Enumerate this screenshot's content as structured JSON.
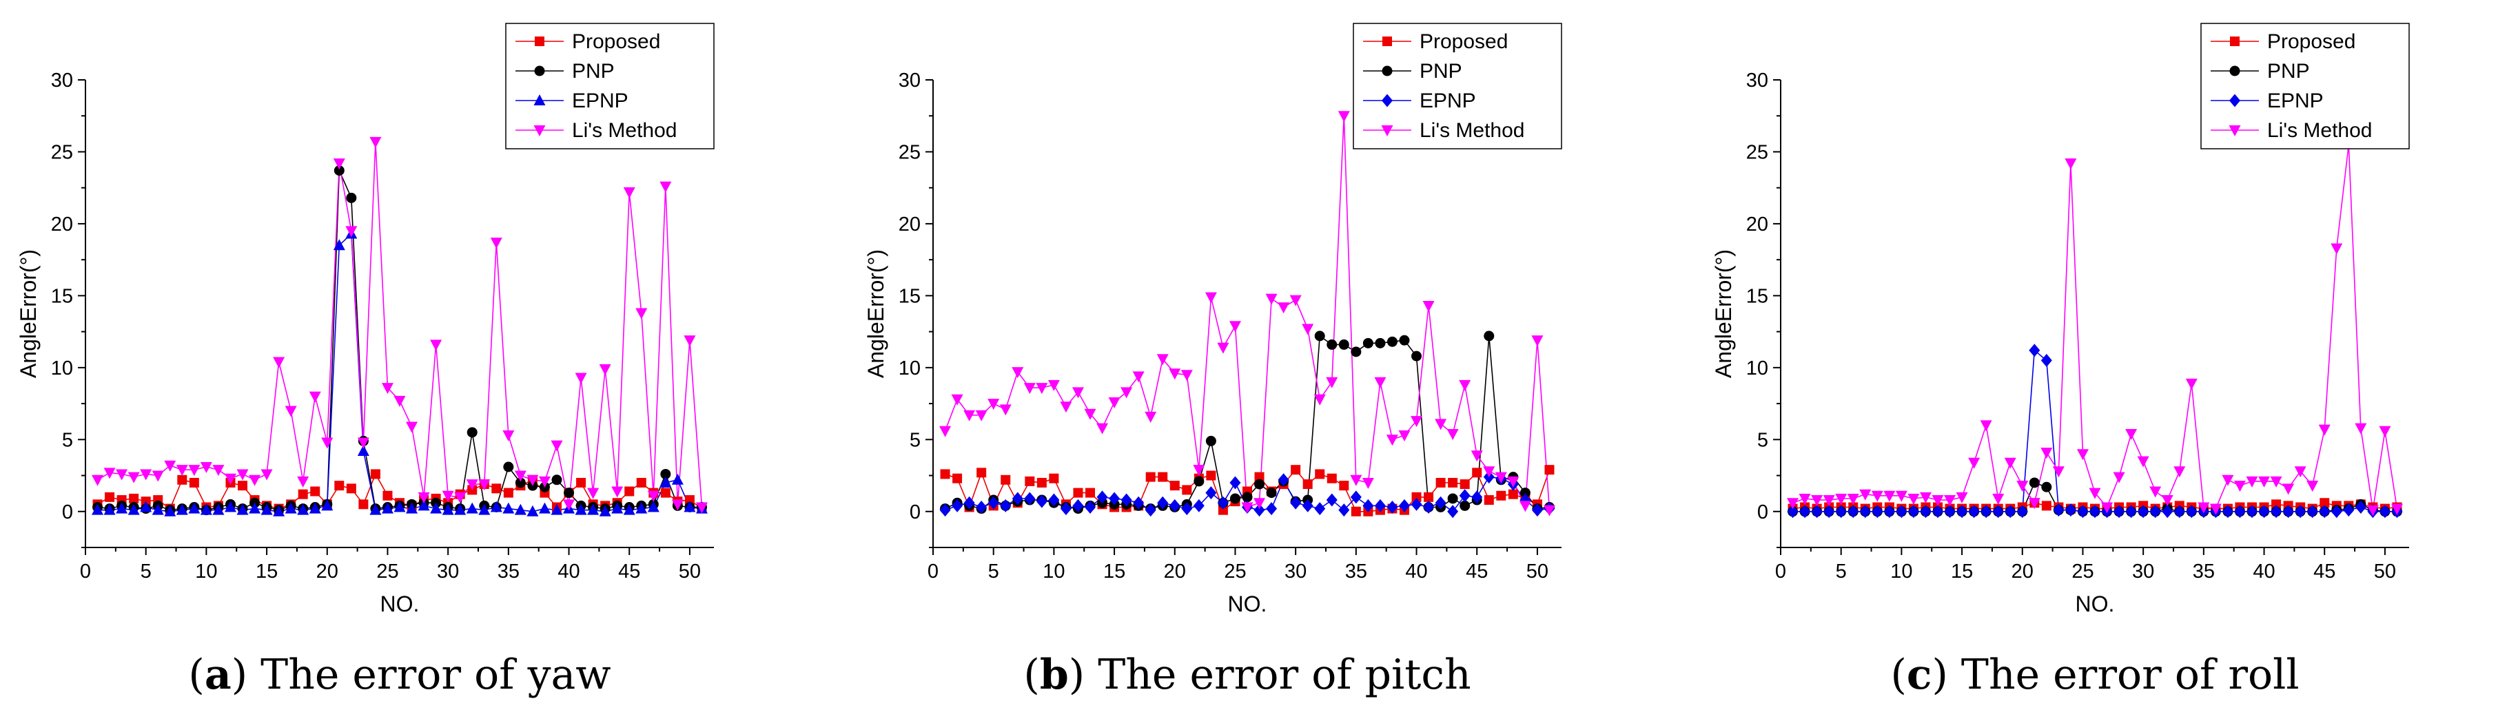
{
  "colors": {
    "proposed": "#ee0000",
    "pnp": "#000000",
    "epnp": "#0000ee",
    "li": "#ff00ff"
  },
  "chart_data": [
    {
      "type": "line",
      "id": "yaw",
      "caption_letter": "a",
      "caption_text": "The error of yaw",
      "xlabel": "NO.",
      "ylabel": "AngleError(°)",
      "xlim": [
        0,
        52
      ],
      "ylim": [
        -2.5,
        30
      ],
      "xticks": [
        0,
        5,
        10,
        15,
        20,
        25,
        30,
        35,
        40,
        45,
        50
      ],
      "yticks": [
        0,
        5,
        10,
        15,
        20,
        25,
        30
      ],
      "legend_position": "top-right",
      "series": [
        {
          "key": "proposed",
          "name": "Proposed",
          "marker": "square",
          "values": [
            0.5,
            1,
            0.8,
            0.9,
            0.7,
            0.8,
            0.2,
            2.2,
            2.0,
            0.3,
            0.4,
            2.0,
            1.8,
            0.8,
            0.4,
            0.2,
            0.5,
            1.2,
            1.4,
            0.5,
            1.8,
            1.6,
            0.5,
            2.6,
            1.1,
            0.6,
            0.4,
            0.8,
            0.9,
            0.6,
            1.2,
            1.5,
            1.9,
            1.6,
            1.3,
            1.8,
            2.2,
            1.3,
            0.3,
            1.3,
            2.0,
            0.5,
            0.4,
            0.6,
            1.4,
            2.0,
            1.3,
            1.3,
            0.7,
            0.8,
            0.2
          ]
        },
        {
          "key": "pnp",
          "name": "PNP",
          "marker": "circle",
          "values": [
            0.3,
            0.2,
            0.4,
            0.3,
            0.2,
            0.4,
            0.1,
            0.2,
            0.3,
            0.1,
            0.3,
            0.5,
            0.2,
            0.6,
            0.3,
            0.1,
            0.4,
            0.2,
            0.3,
            0.5,
            23.7,
            21.8,
            4.9,
            0.2,
            0.3,
            0.4,
            0.5,
            0.6,
            0.6,
            0.3,
            0.2,
            5.5,
            0.4,
            0.3,
            3.1,
            2.0,
            1.8,
            1.7,
            2.2,
            1.3,
            0.4,
            0.3,
            0.2,
            0.4,
            0.3,
            0.4,
            0.5,
            2.6,
            0.4,
            0.3,
            0.3
          ]
        },
        {
          "key": "epnp",
          "name": "EPNP",
          "marker": "triangle-up",
          "values": [
            0.1,
            0.1,
            0.2,
            0.1,
            0.3,
            0.1,
            0.0,
            0.1,
            0.2,
            0.1,
            0.1,
            0.3,
            0.1,
            0.2,
            0.1,
            0.0,
            0.2,
            0.1,
            0.2,
            0.4,
            18.5,
            19.3,
            4.2,
            0.1,
            0.2,
            0.3,
            0.2,
            0.4,
            0.2,
            0.1,
            0.1,
            0.2,
            0.1,
            0.3,
            0.2,
            0.1,
            0.0,
            0.2,
            0.1,
            0.2,
            0.1,
            0.1,
            0.0,
            0.2,
            0.1,
            0.2,
            0.3,
            2.0,
            2.2,
            0.3,
            0.2
          ]
        },
        {
          "key": "li",
          "name": "Li's Method",
          "marker": "triangle-down",
          "values": [
            2.2,
            2.7,
            2.6,
            2.4,
            2.6,
            2.5,
            3.2,
            2.9,
            2.9,
            3.1,
            2.9,
            2.3,
            2.6,
            2.2,
            2.6,
            10.4,
            7.0,
            2.1,
            8.0,
            4.8,
            24.2,
            19.5,
            4.8,
            25.7,
            8.6,
            7.7,
            5.9,
            1.0,
            11.6,
            1.1,
            1.0,
            1.9,
            1.9,
            18.7,
            5.3,
            2.5,
            2.2,
            2.1,
            4.6,
            0.5,
            9.3,
            1.3,
            9.9,
            1.4,
            22.2,
            13.8,
            1.1,
            22.6,
            0.5,
            11.9,
            0.3
          ]
        }
      ]
    },
    {
      "type": "line",
      "id": "pitch",
      "caption_letter": "b",
      "caption_text": "The error of pitch",
      "xlabel": "NO.",
      "ylabel": "AngleError(°)",
      "xlim": [
        0,
        52
      ],
      "ylim": [
        -2.5,
        30
      ],
      "xticks": [
        0,
        5,
        10,
        15,
        20,
        25,
        30,
        35,
        40,
        45,
        50
      ],
      "yticks": [
        0,
        5,
        10,
        15,
        20,
        25,
        30
      ],
      "legend_position": "top-right",
      "series": [
        {
          "key": "proposed",
          "name": "Proposed",
          "marker": "square",
          "values": [
            2.6,
            2.3,
            0.3,
            2.7,
            0.4,
            2.2,
            0.6,
            2.1,
            2.0,
            2.3,
            0.5,
            1.3,
            1.3,
            0.5,
            0.3,
            0.3,
            0.4,
            2.4,
            2.4,
            1.8,
            1.5,
            2.3,
            2.5,
            0.1,
            0.7,
            1.4,
            2.4,
            1.4,
            1.9,
            2.9,
            1.9,
            2.6,
            2.3,
            1.8,
            0.0,
            0.0,
            0.1,
            0.2,
            0.1,
            1.0,
            1.0,
            2.0,
            2.0,
            1.9,
            2.7,
            0.8,
            1.1,
            1.2,
            0.9,
            0.5,
            2.9
          ]
        },
        {
          "key": "pnp",
          "name": "PNP",
          "marker": "circle",
          "values": [
            0.2,
            0.6,
            0.4,
            0.2,
            0.8,
            0.4,
            0.7,
            0.8,
            0.8,
            0.6,
            0.3,
            0.2,
            0.4,
            0.6,
            0.5,
            0.5,
            0.4,
            0.2,
            0.4,
            0.3,
            0.5,
            2.1,
            4.9,
            0.6,
            0.9,
            1.0,
            1.9,
            1.3,
            2.1,
            0.7,
            0.8,
            12.2,
            11.6,
            11.6,
            11.1,
            11.7,
            11.7,
            11.8,
            11.9,
            10.8,
            0.3,
            0.3,
            0.9,
            0.4,
            0.8,
            12.2,
            2.2,
            2.4,
            1.3,
            0.2,
            0.3
          ]
        },
        {
          "key": "epnp",
          "name": "EPNP",
          "marker": "diamond",
          "values": [
            0.1,
            0.4,
            0.6,
            0.3,
            0.6,
            0.4,
            0.9,
            0.9,
            0.7,
            0.8,
            0.2,
            0.4,
            0.3,
            1.0,
            0.9,
            0.8,
            0.6,
            0.1,
            0.6,
            0.4,
            0.2,
            0.4,
            1.3,
            0.6,
            2.0,
            0.3,
            0.1,
            0.2,
            2.2,
            0.6,
            0.4,
            0.2,
            0.8,
            0.1,
            1.0,
            0.4,
            0.4,
            0.3,
            0.4,
            0.5,
            0.3,
            0.6,
            0.0,
            1.1,
            1.0,
            2.4,
            2.3,
            1.9,
            0.8,
            0.1,
            0.2
          ]
        },
        {
          "key": "li",
          "name": "Li's Method",
          "marker": "triangle-down",
          "values": [
            5.6,
            7.8,
            6.7,
            6.7,
            7.5,
            7.1,
            9.7,
            8.6,
            8.6,
            8.8,
            7.3,
            8.3,
            6.8,
            5.8,
            7.6,
            8.3,
            9.4,
            6.6,
            10.6,
            9.6,
            9.5,
            2.9,
            14.9,
            11.4,
            12.9,
            0.3,
            0.6,
            14.8,
            14.2,
            14.7,
            12.7,
            7.8,
            9.0,
            27.5,
            2.2,
            2.0,
            9.0,
            5.0,
            5.3,
            6.3,
            14.3,
            6.1,
            5.4,
            8.8,
            3.9,
            2.8,
            2.4,
            2.1,
            0.4,
            11.9,
            0.1
          ]
        }
      ]
    },
    {
      "type": "line",
      "id": "roll",
      "caption_letter": "c",
      "caption_text": "The error of roll",
      "xlabel": "NO.",
      "ylabel": "AngleError(°)",
      "xlim": [
        0,
        52
      ],
      "ylim": [
        -2.5,
        30
      ],
      "xticks": [
        0,
        5,
        10,
        15,
        20,
        25,
        30,
        35,
        40,
        45,
        50
      ],
      "yticks": [
        0,
        5,
        10,
        15,
        20,
        25,
        30
      ],
      "legend_position": "top-right",
      "series": [
        {
          "key": "proposed",
          "name": "Proposed",
          "marker": "square",
          "values": [
            0.2,
            0.3,
            0.2,
            0.3,
            0.3,
            0.3,
            0.2,
            0.3,
            0.3,
            0.2,
            0.2,
            0.3,
            0.3,
            0.2,
            0.2,
            0.2,
            0.2,
            0.2,
            0.2,
            0.3,
            0.6,
            0.4,
            0.3,
            0.2,
            0.3,
            0.2,
            0.2,
            0.3,
            0.3,
            0.4,
            0.2,
            0.3,
            0.4,
            0.3,
            0.2,
            0.2,
            0.2,
            0.3,
            0.3,
            0.3,
            0.5,
            0.4,
            0.3,
            0.2,
            0.6,
            0.4,
            0.4,
            0.5,
            0.3,
            0.2,
            0.3
          ]
        },
        {
          "key": "pnp",
          "name": "PNP",
          "marker": "circle",
          "values": [
            0.0,
            0.0,
            0.0,
            0.0,
            0.0,
            0.0,
            0.0,
            0.0,
            0.0,
            0.0,
            0.0,
            0.0,
            0.0,
            0.0,
            0.0,
            0.0,
            0.0,
            0.0,
            0.0,
            0.0,
            2.0,
            1.7,
            0.1,
            0.1,
            0.0,
            0.0,
            0.0,
            0.0,
            0.0,
            0.0,
            0.0,
            0.2,
            0.0,
            0.0,
            0.0,
            0.0,
            0.0,
            0.0,
            0.0,
            0.0,
            0.0,
            0.0,
            0.0,
            0.0,
            0.0,
            0.1,
            0.2,
            0.5,
            0.1,
            0.0,
            0.0
          ]
        },
        {
          "key": "epnp",
          "name": "EPNP",
          "marker": "diamond",
          "values": [
            0.0,
            0.0,
            0.0,
            0.0,
            0.0,
            0.0,
            0.0,
            0.0,
            0.0,
            0.0,
            0.0,
            0.0,
            0.0,
            0.0,
            0.0,
            0.0,
            0.0,
            0.0,
            0.0,
            0.0,
            11.2,
            10.5,
            0.1,
            0.1,
            0.0,
            0.0,
            0.0,
            0.0,
            0.0,
            0.0,
            0.0,
            0.0,
            0.0,
            0.0,
            0.0,
            0.0,
            0.0,
            0.0,
            0.0,
            0.0,
            0.0,
            0.0,
            0.0,
            0.0,
            0.0,
            0.0,
            0.1,
            0.3,
            0.0,
            0.0,
            0.0
          ]
        },
        {
          "key": "li",
          "name": "Li's Method",
          "marker": "triangle-down",
          "values": [
            0.6,
            0.9,
            0.8,
            0.8,
            0.9,
            0.9,
            1.2,
            1.1,
            1.1,
            1.1,
            0.9,
            1.0,
            0.8,
            0.8,
            1.0,
            3.4,
            6.0,
            0.9,
            3.4,
            1.8,
            0.6,
            4.1,
            2.8,
            24.2,
            4.0,
            1.3,
            0.3,
            2.4,
            5.4,
            3.5,
            1.4,
            0.8,
            2.8,
            8.9,
            0.3,
            0.2,
            2.2,
            1.8,
            2.1,
            2.1,
            2.1,
            1.6,
            2.8,
            1.8,
            5.7,
            18.3,
            25.5,
            5.8,
            0.1,
            5.6,
            0.2
          ]
        }
      ]
    }
  ]
}
